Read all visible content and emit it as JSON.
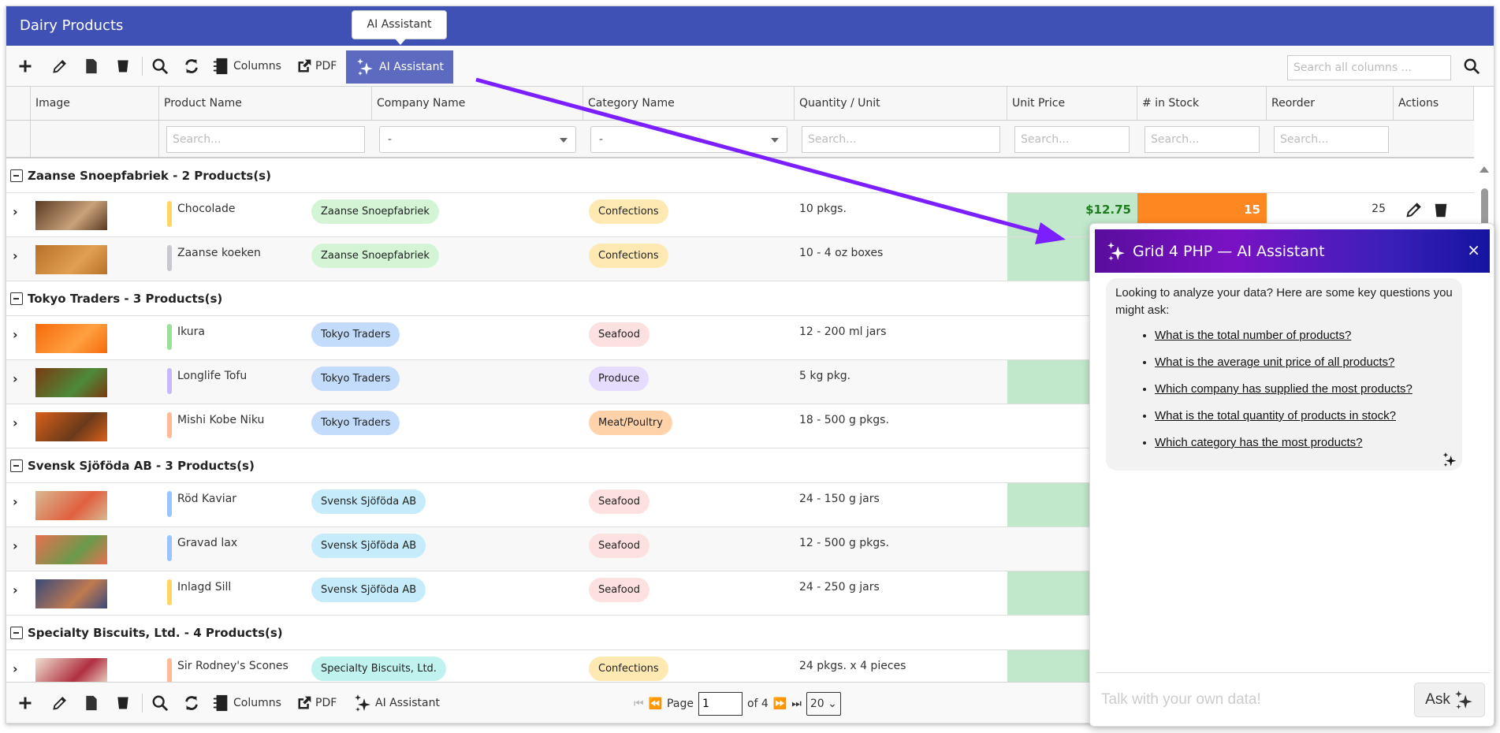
{
  "title": "Dairy Products",
  "tooltip": "AI Assistant",
  "toolbar": {
    "columns_label": "Columns",
    "pdf_label": "PDF",
    "ai_label": "AI Assistant",
    "search_placeholder": "Search all columns ..."
  },
  "columns": [
    "Image",
    "Product Name",
    "Company Name",
    "Category Name",
    "Quantity / Unit",
    "Unit Price",
    "# in Stock",
    "Reorder",
    "Actions"
  ],
  "filters": {
    "search_placeholder": "Search...",
    "select_value": "-"
  },
  "colors": {
    "brand": "#3f51b5",
    "ai_button": "#5c6bc0",
    "price_bg": "#c1e8cb",
    "stock_bg": "#fd8721",
    "arrow": "#7b1fff"
  },
  "groups": [
    {
      "label": "Zaanse Snoepfabriek - 2 Products(s)",
      "rows": [
        {
          "product": "Chocolade",
          "bar": "#ffd666",
          "image": [
            "#5a3a22",
            "#c9a27a"
          ],
          "company": "Zaanse Snoepfabriek",
          "company_color": "#d3f5d6",
          "category": "Confections",
          "category_color": "#ffe9b3",
          "qty": "10 pkgs.",
          "price": "$12.75",
          "price_highlight": true,
          "stock": "15",
          "stock_highlight": true,
          "reorder": "25"
        },
        {
          "product": "Zaanse koeken",
          "bar": "#c8c8d0",
          "image": [
            "#b8702a",
            "#e0a050"
          ],
          "company": "Zaanse Snoepfabriek",
          "company_color": "#d3f5d6",
          "category": "Confections",
          "category_color": "#ffe9b3",
          "qty": "10 - 4 oz boxes",
          "price_highlight": true
        }
      ]
    },
    {
      "label": "Tokyo Traders - 3 Products(s)",
      "rows": [
        {
          "product": "Ikura",
          "bar": "#99e199",
          "image": [
            "#f56a0a",
            "#ffa040"
          ],
          "company": "Tokyo Traders",
          "company_color": "#c3dcfb",
          "category": "Seafood",
          "category_color": "#fde0e0",
          "qty": "12 - 200 ml jars"
        },
        {
          "product": "Longlife Tofu",
          "bar": "#c8b8ff",
          "image": [
            "#7a3a10",
            "#4d8a3a"
          ],
          "company": "Tokyo Traders",
          "company_color": "#c3dcfb",
          "category": "Produce",
          "category_color": "#e6dcfd",
          "qty": "5 kg pkg.",
          "price_highlight": true
        },
        {
          "product": "Mishi Kobe Niku",
          "bar": "#ffbb99",
          "image": [
            "#d8601a",
            "#6a3a1a"
          ],
          "company": "Tokyo Traders",
          "company_color": "#c3dcfb",
          "category": "Meat/Poultry",
          "category_color": "#ffd2aa",
          "qty": "18 - 500 g pkgs."
        }
      ]
    },
    {
      "label": "Svensk Sjöföda AB - 3 Products(s)",
      "rows": [
        {
          "product": "Röd Kaviar",
          "bar": "#99c4ff",
          "image": [
            "#d8b890",
            "#e06040"
          ],
          "company": "Svensk Sjöföda AB",
          "company_color": "#c6ecfb",
          "category": "Seafood",
          "category_color": "#fde0e0",
          "qty": "24 - 150 g jars",
          "price_highlight": true
        },
        {
          "product": "Gravad lax",
          "bar": "#99c4ff",
          "image": [
            "#e87050",
            "#6a9a4a"
          ],
          "company": "Svensk Sjöföda AB",
          "company_color": "#c6ecfb",
          "category": "Seafood",
          "category_color": "#fde0e0",
          "qty": "12 - 500 g pkgs."
        },
        {
          "product": "Inlagd Sill",
          "bar": "#ffd666",
          "image": [
            "#3a4a7a",
            "#c07a50"
          ],
          "company": "Svensk Sjöföda AB",
          "company_color": "#c6ecfb",
          "category": "Seafood",
          "category_color": "#fde0e0",
          "qty": "24 - 250 g jars",
          "price_highlight": true
        }
      ]
    },
    {
      "label": "Specialty Biscuits, Ltd. - 4 Products(s)",
      "rows": [
        {
          "product": "Sir Rodney's Scones",
          "bar": "#ffbb99",
          "image": [
            "#f0e0d0",
            "#b03040"
          ],
          "company": "Specialty Biscuits, Ltd.",
          "company_color": "#c0f2ef",
          "category": "Confections",
          "category_color": "#ffe9b3",
          "qty": "24 pkgs. x 4 pieces",
          "price_highlight": true
        }
      ]
    }
  ],
  "pager": {
    "page_label": "Page",
    "page": "1",
    "of_label": "of 4",
    "page_size": "20"
  },
  "assistant": {
    "title": "Grid 4 PHP — AI Assistant",
    "close": "×",
    "intro": "Looking to analyze your data? Here are some key questions you might ask:",
    "questions": [
      "What is the total number of products?",
      "What is the average unit price of all products?",
      "Which company has supplied the most products?",
      "What is the total quantity of products in stock?",
      "Which category has the most products?"
    ],
    "input_placeholder": "Talk with your own data!",
    "ask_label": "Ask"
  }
}
